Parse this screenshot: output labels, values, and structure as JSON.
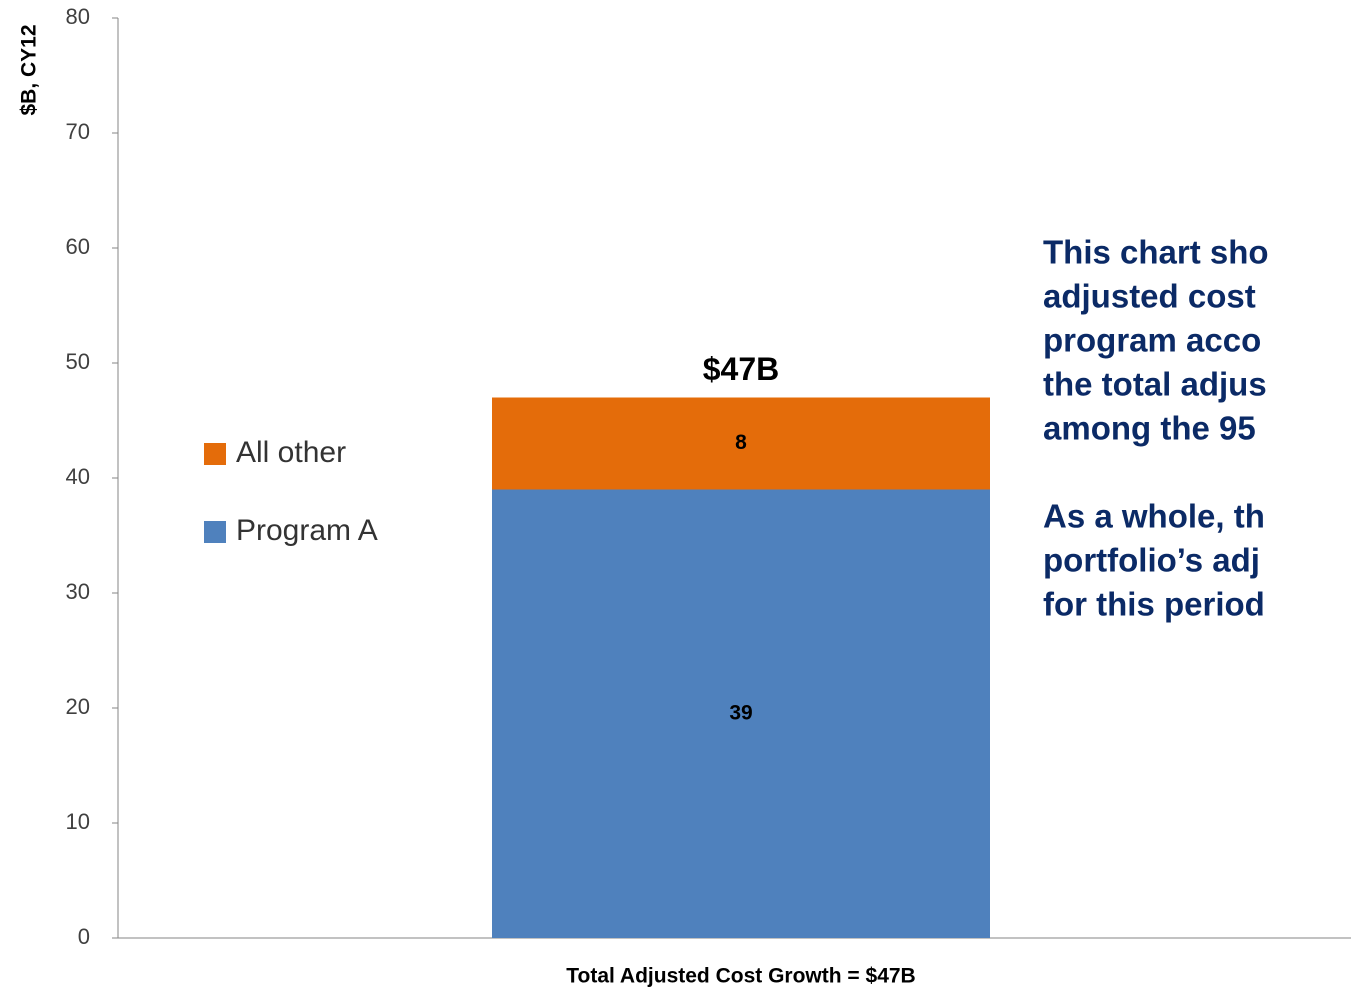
{
  "chart_data": {
    "type": "stacked_bar",
    "y_label": "$B, CY12",
    "x_label": "Total Adjusted Cost Growth = $47B",
    "total_label": "$47B",
    "categories": [
      null
    ],
    "series": [
      {
        "name": "Program A",
        "color": "#4f81bd",
        "values": [
          39
        ]
      },
      {
        "name": "All other",
        "color": "#e46c0a",
        "values": [
          8
        ]
      }
    ],
    "ylim": [
      0,
      80
    ],
    "yticks": [
      0,
      10,
      20,
      30,
      40,
      50,
      60,
      70,
      80
    ],
    "legend": "left",
    "annotations": [
      [
        "This chart sho",
        "adjusted cost",
        "program acco",
        "the total adjus",
        "among the 95"
      ],
      [
        "As a whole, th",
        "portfolio’s adj",
        "for this period"
      ]
    ]
  }
}
